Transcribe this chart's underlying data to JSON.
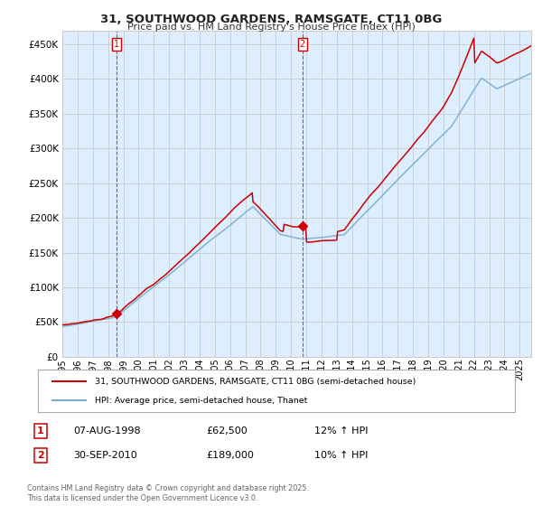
{
  "title1": "31, SOUTHWOOD GARDENS, RAMSGATE, CT11 0BG",
  "title2": "Price paid vs. HM Land Registry's House Price Index (HPI)",
  "legend_line1": "31, SOUTHWOOD GARDENS, RAMSGATE, CT11 0BG (semi-detached house)",
  "legend_line2": "HPI: Average price, semi-detached house, Thanet",
  "footnote": "Contains HM Land Registry data © Crown copyright and database right 2025.\nThis data is licensed under the Open Government Licence v3.0.",
  "marker1_label": "1",
  "marker1_date": "07-AUG-1998",
  "marker1_price": "£62,500",
  "marker1_hpi": "12% ↑ HPI",
  "marker2_label": "2",
  "marker2_date": "30-SEP-2010",
  "marker2_price": "£189,000",
  "marker2_hpi": "10% ↑ HPI",
  "sale1_x": 1998.583,
  "sale1_y": 62500,
  "sale2_x": 2010.75,
  "sale2_y": 189000,
  "red_color": "#cc0000",
  "blue_color": "#7aaccc",
  "marker_box_color": "#cc0000",
  "grid_color": "#cccccc",
  "chart_bg_color": "#ddeeff",
  "background_color": "#ffffff",
  "ylim": [
    0,
    470000
  ],
  "yticks": [
    0,
    50000,
    100000,
    150000,
    200000,
    250000,
    300000,
    350000,
    400000,
    450000
  ],
  "xlim_start": 1995.0,
  "xlim_end": 2025.75,
  "xtick_years": [
    1995,
    1996,
    1997,
    1998,
    1999,
    2000,
    2001,
    2002,
    2003,
    2004,
    2005,
    2006,
    2007,
    2008,
    2009,
    2010,
    2011,
    2012,
    2013,
    2014,
    2015,
    2016,
    2017,
    2018,
    2019,
    2020,
    2021,
    2022,
    2023,
    2024,
    2025
  ]
}
